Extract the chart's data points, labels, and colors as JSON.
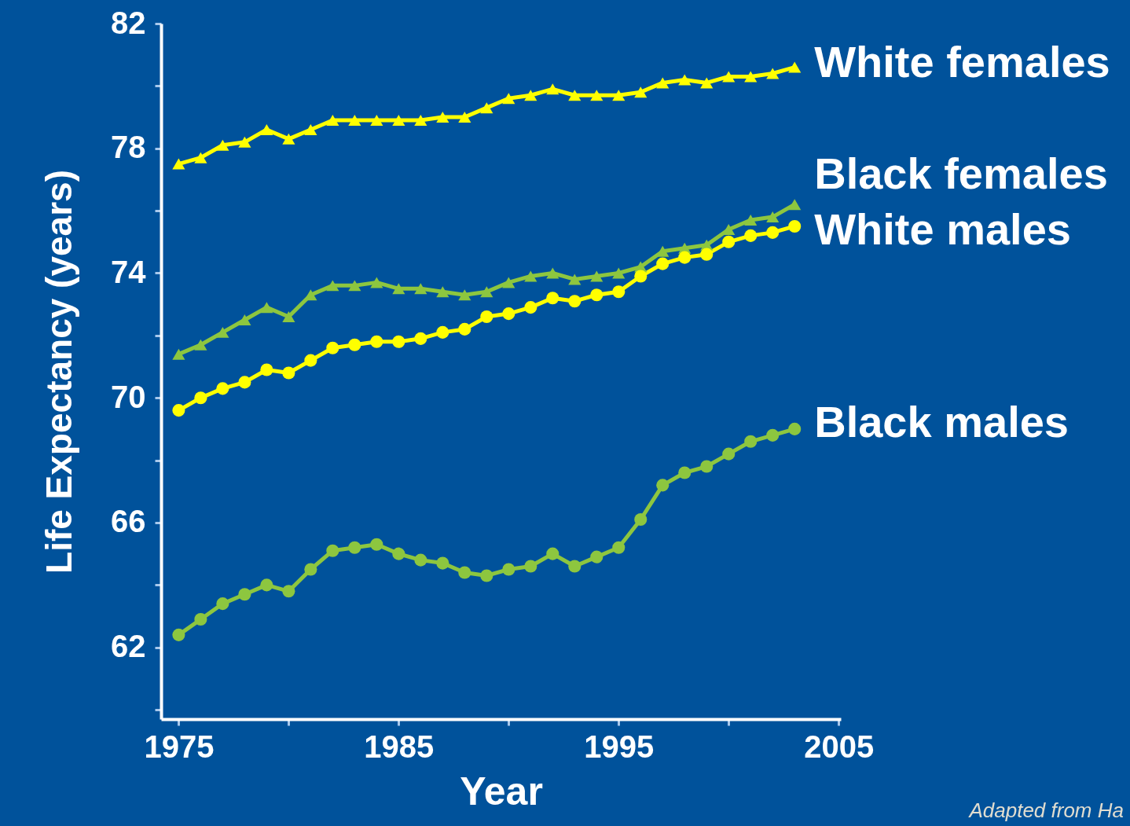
{
  "chart_data": {
    "type": "line",
    "xlabel": "Year",
    "ylabel": "Life Expectancy (years)",
    "annotations": [
      "Adapted from Ha"
    ],
    "x": [
      1975,
      1976,
      1977,
      1978,
      1979,
      1980,
      1981,
      1982,
      1983,
      1984,
      1985,
      1986,
      1987,
      1988,
      1989,
      1990,
      1991,
      1992,
      1993,
      1994,
      1995,
      1996,
      1997,
      1998,
      1999,
      2000,
      2001,
      2002,
      2003
    ],
    "xlim": [
      1974.2,
      2005.1
    ],
    "xticks": [
      1975,
      {
        "value": 1980,
        "label": null
      },
      1985,
      {
        "value": 1990,
        "label": null
      },
      1995,
      {
        "value": 2000,
        "label": null
      },
      2005
    ],
    "ylim": [
      59.7,
      82
    ],
    "yticks": [
      {
        "value": 60,
        "label": null
      },
      62,
      {
        "value": 64,
        "label": null
      },
      66,
      {
        "value": 68,
        "label": null
      },
      70,
      {
        "value": 72,
        "label": null
      },
      74,
      {
        "value": 76,
        "label": null
      },
      78,
      {
        "value": 80,
        "label": null
      },
      82
    ],
    "grid": false,
    "legend": false,
    "line_style": "solid",
    "series": [
      {
        "name": "White females",
        "color": "#ffff00",
        "marker": "triangle",
        "values": [
          77.5,
          77.7,
          78.1,
          78.2,
          78.6,
          78.3,
          78.6,
          78.9,
          78.9,
          78.9,
          78.9,
          78.9,
          79.0,
          79.0,
          79.3,
          79.6,
          79.7,
          79.9,
          79.7,
          79.7,
          79.7,
          79.8,
          80.1,
          80.2,
          80.1,
          80.3,
          80.3,
          80.4,
          80.6
        ]
      },
      {
        "name": "Black females",
        "color": "#8dc63f",
        "marker": "triangle",
        "values": [
          71.4,
          71.7,
          72.1,
          72.5,
          72.9,
          72.6,
          73.3,
          73.6,
          73.6,
          73.7,
          73.5,
          73.5,
          73.4,
          73.3,
          73.4,
          73.7,
          73.9,
          74.0,
          73.8,
          73.9,
          74.0,
          74.2,
          74.7,
          74.8,
          74.9,
          75.4,
          75.7,
          75.8,
          76.2
        ]
      },
      {
        "name": "White males",
        "color": "#ffff00",
        "marker": "circle",
        "values": [
          69.6,
          70.0,
          70.3,
          70.5,
          70.9,
          70.8,
          71.2,
          71.6,
          71.7,
          71.8,
          71.8,
          71.9,
          72.1,
          72.2,
          72.6,
          72.7,
          72.9,
          73.2,
          73.1,
          73.3,
          73.4,
          73.9,
          74.3,
          74.5,
          74.6,
          75.0,
          75.2,
          75.3,
          75.5
        ]
      },
      {
        "name": "Black males",
        "color": "#8dc63f",
        "marker": "circle",
        "values": [
          62.4,
          62.9,
          63.4,
          63.7,
          64.0,
          63.8,
          64.5,
          65.1,
          65.2,
          65.3,
          65.0,
          64.8,
          64.7,
          64.4,
          64.3,
          64.5,
          64.6,
          65.0,
          64.6,
          64.9,
          65.2,
          66.1,
          67.2,
          67.6,
          67.8,
          68.2,
          68.6,
          68.8,
          69.0
        ]
      }
    ]
  }
}
